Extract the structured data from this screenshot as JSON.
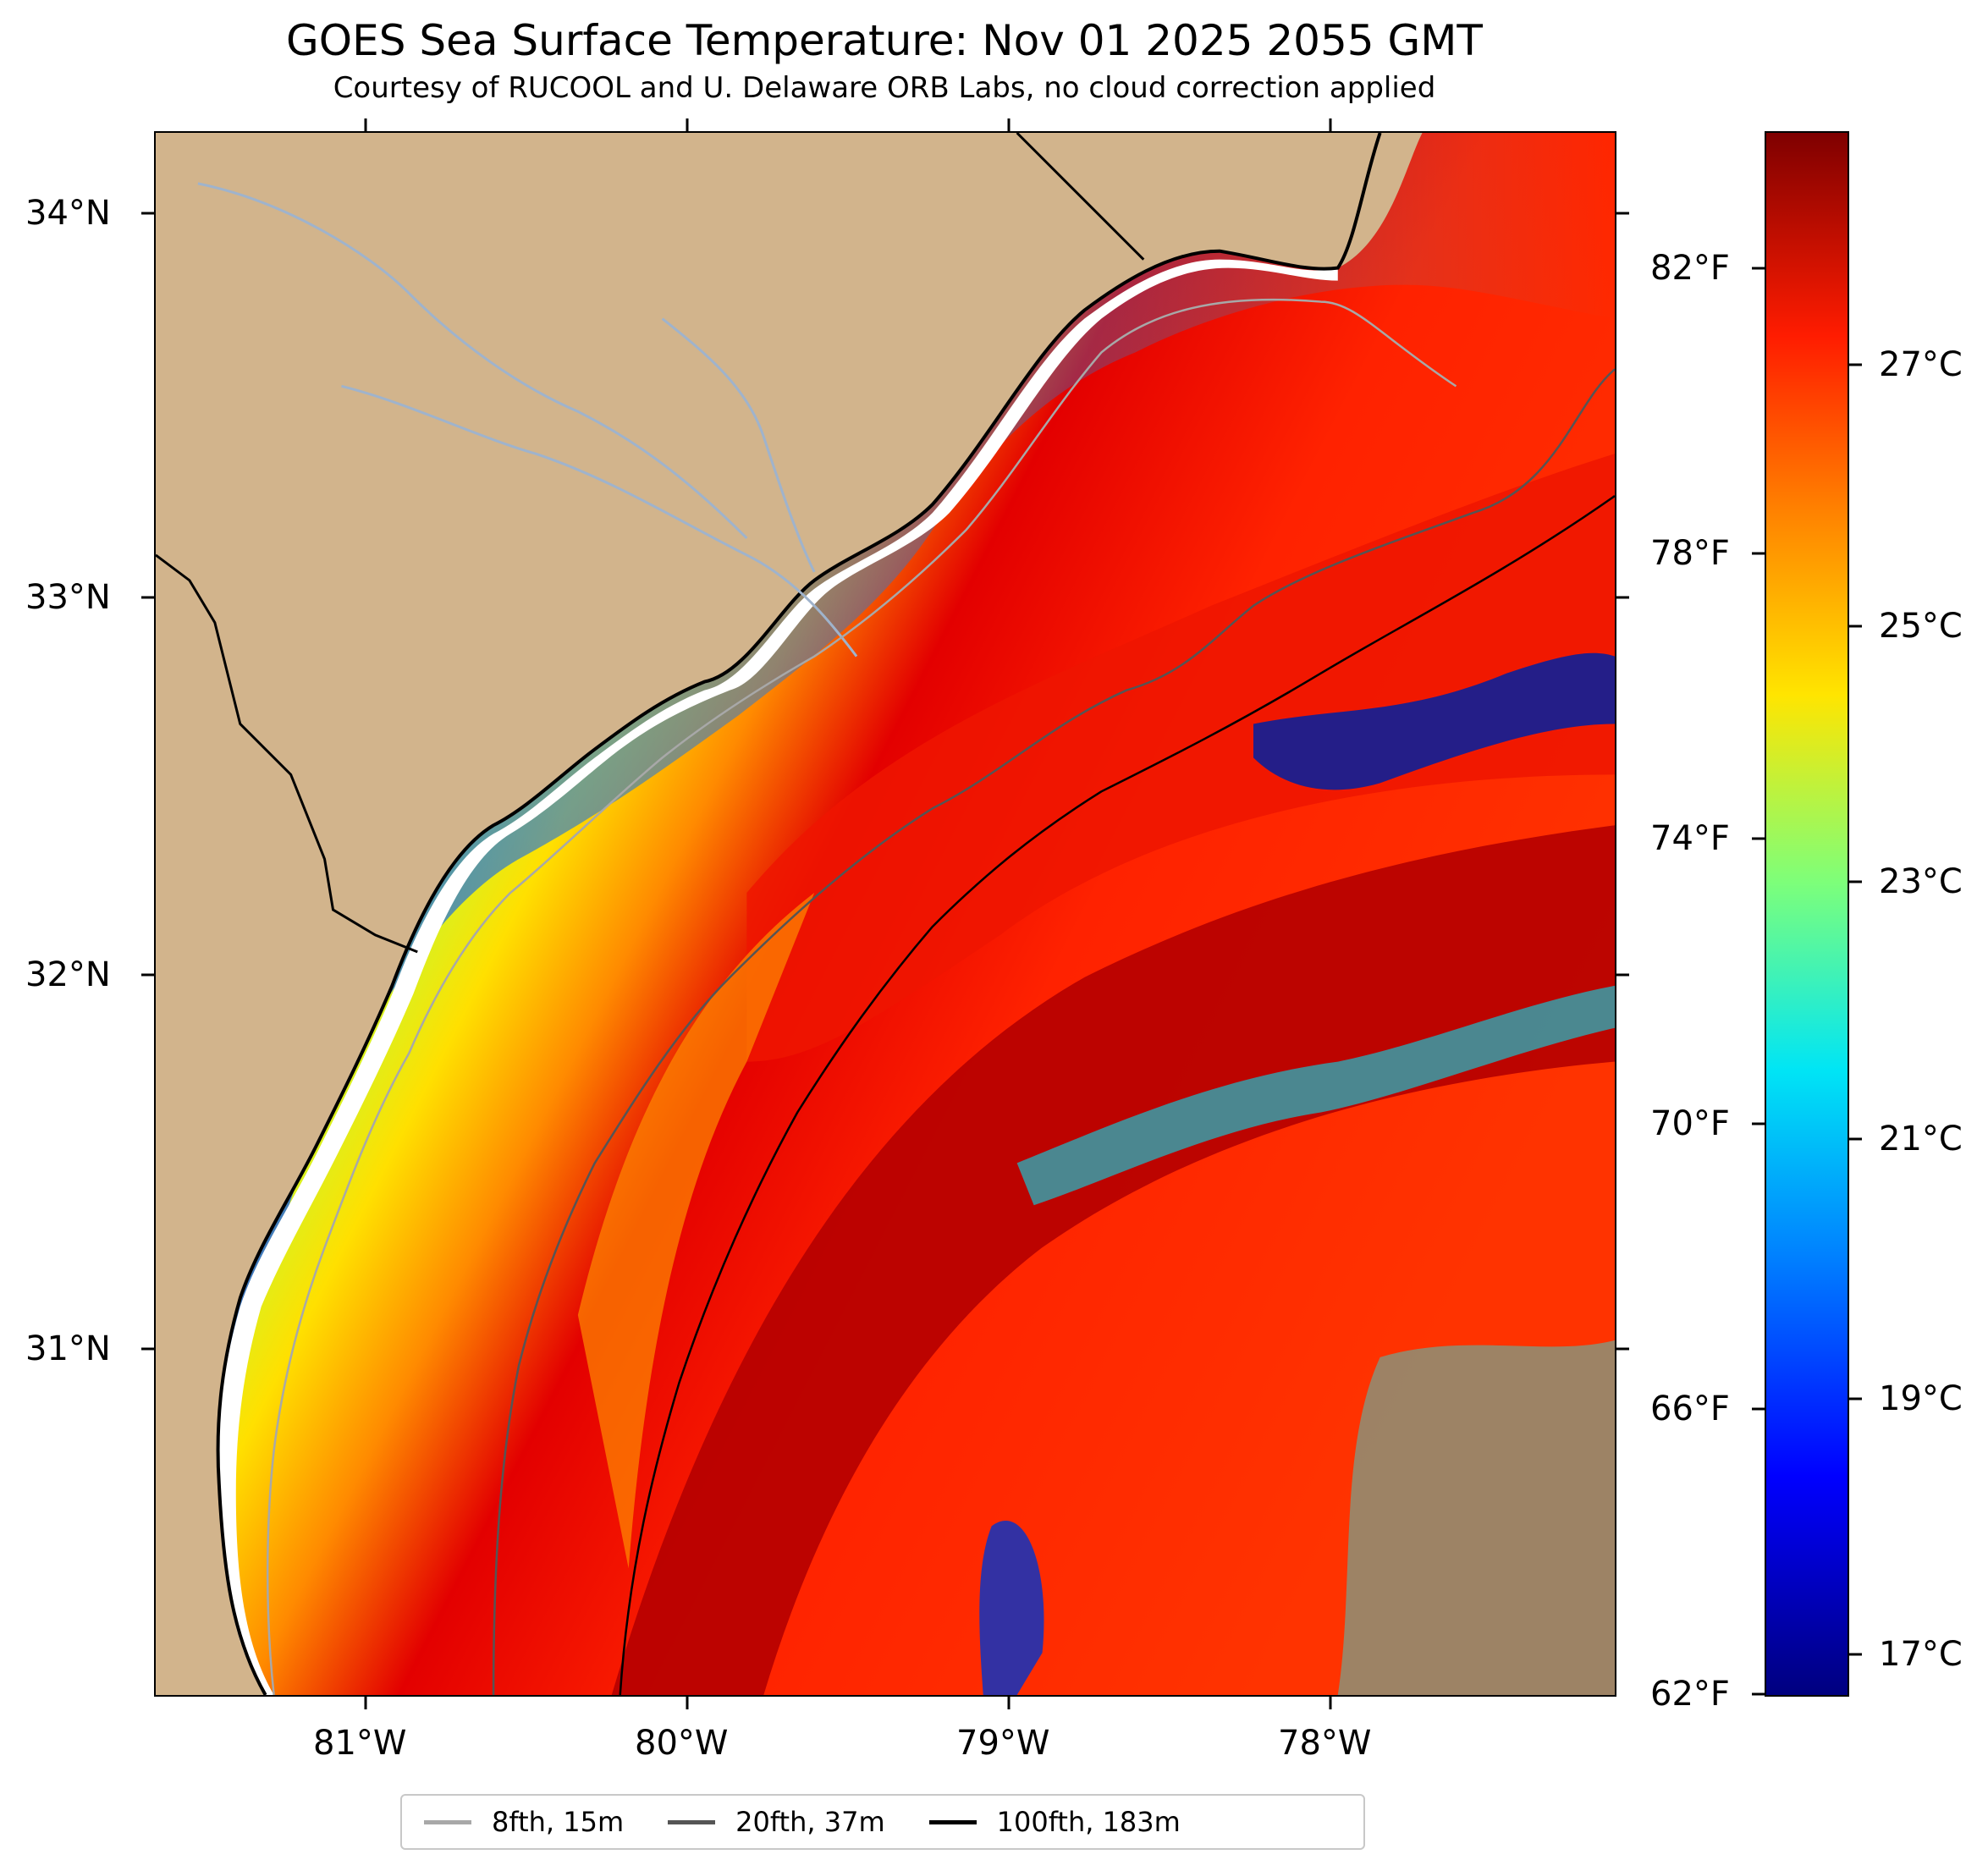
{
  "title": "GOES Sea Surface Temperature: Nov 01 2025 2055 GMT",
  "subtitle": "Courtesy of RUCOOL and U. Delaware ORB Labs, no cloud correction applied",
  "latitude_labels": [
    "34°N",
    "33°N",
    "32°N",
    "31°N"
  ],
  "longitude_labels": [
    "81°W",
    "80°W",
    "79°W",
    "78°W"
  ],
  "fahrenheit_labels": [
    "82°F",
    "78°F",
    "74°F",
    "70°F",
    "66°F",
    "62°F"
  ],
  "celsius_labels": [
    "27°C",
    "25°C",
    "23°C",
    "21°C",
    "19°C",
    "17°C"
  ],
  "legend": [
    {
      "label": "8fth, 15m",
      "color": "#a8a8a8"
    },
    {
      "label": "20fth, 37m",
      "color": "#555555"
    },
    {
      "label": "100fth, 183m",
      "color": "#000000"
    }
  ],
  "colors": {
    "land": "#d2b48c",
    "coast": "#000000",
    "river": "#9fb3cc"
  }
}
